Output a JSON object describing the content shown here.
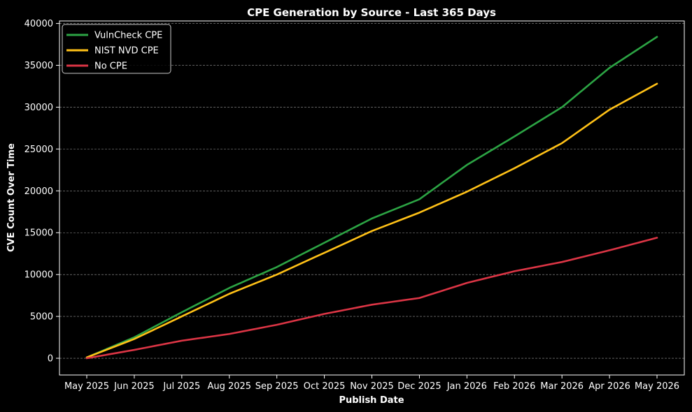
{
  "chart_data": {
    "type": "line",
    "title": "CPE Generation by Source - Last 365 Days",
    "xlabel": "Publish Date",
    "ylabel": "CVE Count Over Time",
    "x": [
      "May 2025",
      "Jun 2025",
      "Jul 2025",
      "Aug 2025",
      "Sep 2025",
      "Oct 2025",
      "Nov 2025",
      "Dec 2025",
      "Jan 2026",
      "Feb 2026",
      "Mar 2026",
      "Apr 2026",
      "May 2026"
    ],
    "xticks": [
      "May 2025",
      "Jun 2025",
      "Jul 2025",
      "Aug 2025",
      "Sep 2025",
      "Oct 2025",
      "Nov 2025",
      "Dec 2025",
      "Jan 2026",
      "Feb 2026",
      "Mar 2026",
      "Apr 2026",
      "May 2026"
    ],
    "yticks": [
      0,
      5000,
      10000,
      15000,
      20000,
      25000,
      30000,
      35000,
      40000
    ],
    "ylim": [
      -2000,
      40300
    ],
    "grid": "horizontal dashed",
    "legend_position": "top-left",
    "series": [
      {
        "name": "VulnCheck CPE",
        "color": "#2ca444",
        "values": [
          100,
          2500,
          5500,
          8400,
          10900,
          13800,
          16700,
          19000,
          23100,
          26500,
          30000,
          34700,
          38400
        ]
      },
      {
        "name": "NIST NVD CPE",
        "color": "#ffc117",
        "values": [
          100,
          2300,
          5000,
          7700,
          10000,
          12600,
          15200,
          17400,
          19900,
          22700,
          25700,
          29700,
          32800
        ]
      },
      {
        "name": "No CPE",
        "color": "#dc3545",
        "values": [
          0,
          1000,
          2100,
          2900,
          4000,
          5300,
          6400,
          7200,
          9000,
          10400,
          11500,
          12900,
          14400
        ]
      }
    ]
  }
}
